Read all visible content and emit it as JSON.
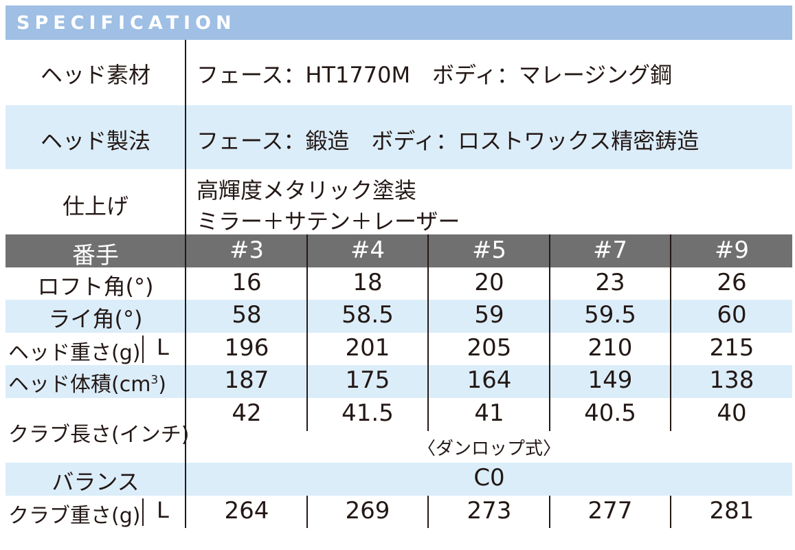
{
  "title": "SPECIFICATION",
  "colors": {
    "title_bar": "#9fbfe4",
    "band_light": "#dbedf9",
    "header_gray": "#707070",
    "text": "#231815"
  },
  "head_material": {
    "label": "ヘッド素材",
    "value": "フェース：HT1770M　ボディ：マレージング鋼"
  },
  "head_method": {
    "label": "ヘッド製法",
    "value": "フェース：鍛造　ボディ：ロストワックス精密鋳造"
  },
  "finish": {
    "label": "仕上げ",
    "line1": "高輝度メタリック塗装",
    "line2": "ミラー＋サテン＋レーザー"
  },
  "number_row": {
    "label": "番手",
    "values": [
      "#3",
      "#4",
      "#5",
      "#7",
      "#9"
    ]
  },
  "loft": {
    "label": "ロフト角(°)",
    "values": [
      "16",
      "18",
      "20",
      "23",
      "26"
    ]
  },
  "lie": {
    "label": "ライ角(°)",
    "values": [
      "58",
      "58.5",
      "59",
      "59.5",
      "60"
    ]
  },
  "head_weight": {
    "label": "ヘッド重さ(g)",
    "flex": "L",
    "values": [
      "196",
      "201",
      "205",
      "210",
      "215"
    ]
  },
  "head_volume": {
    "label": "ヘッド体積(cm",
    "unit_sup": "3",
    "label_close": ")",
    "values": [
      "187",
      "175",
      "164",
      "149",
      "138"
    ]
  },
  "club_length": {
    "label": "クラブ長さ(インチ)",
    "values": [
      "42",
      "41.5",
      "41",
      "40.5",
      "40"
    ],
    "note": "〈ダンロップ式〉"
  },
  "balance": {
    "label": "バランス",
    "value": "C0"
  },
  "club_weight": {
    "label": "クラブ重さ(g)",
    "flex": "L",
    "values": [
      "264",
      "269",
      "273",
      "277",
      "281"
    ]
  }
}
